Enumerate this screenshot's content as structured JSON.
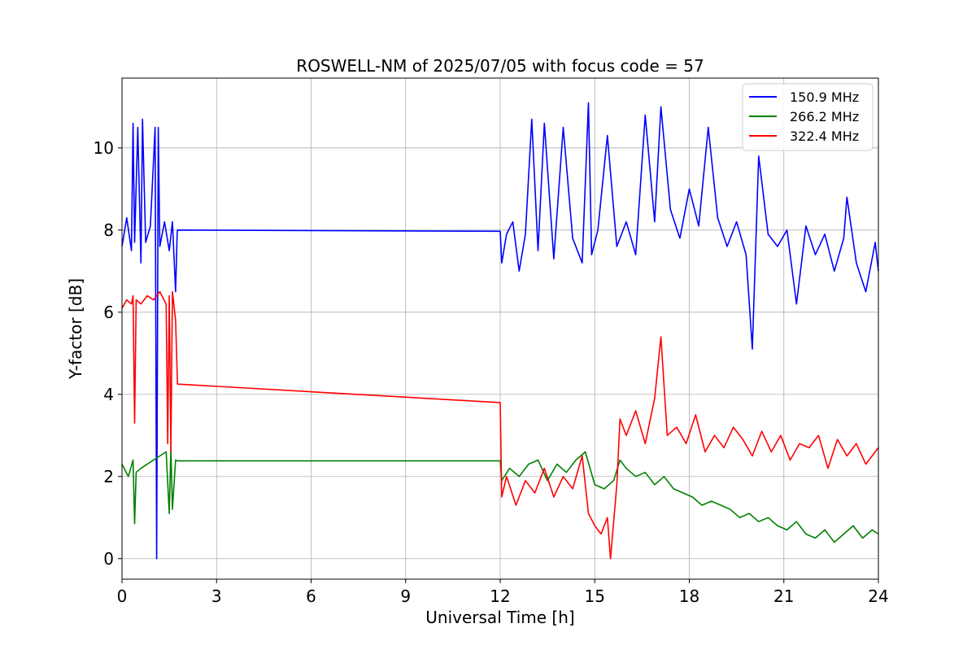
{
  "chart_data": {
    "type": "line",
    "title": "ROSWELL-NM of 2025/07/05 with focus code = 57",
    "xlabel": "Universal Time [h]",
    "ylabel": "Y-factor [dB]",
    "xlim": [
      0,
      24
    ],
    "ylim": [
      -0.5,
      11.7
    ],
    "xticks": [
      0,
      3,
      6,
      9,
      12,
      15,
      18,
      21,
      24
    ],
    "yticks": [
      0,
      2,
      4,
      6,
      8,
      10
    ],
    "grid": true,
    "legend_position": "top-right",
    "series": [
      {
        "name": "150.9 MHz",
        "color": "#0000ff",
        "x": [
          0,
          0.15,
          0.3,
          0.35,
          0.4,
          0.5,
          0.6,
          0.65,
          0.75,
          0.9,
          1.05,
          1.1,
          1.15,
          1.2,
          1.35,
          1.5,
          1.6,
          1.7,
          1.75,
          1.76,
          12.0,
          12.05,
          12.2,
          12.4,
          12.6,
          12.8,
          13.0,
          13.2,
          13.4,
          13.7,
          14.0,
          14.3,
          14.6,
          14.8,
          14.9,
          15.1,
          15.4,
          15.7,
          16.0,
          16.3,
          16.6,
          16.9,
          17.1,
          17.4,
          17.7,
          18.0,
          18.3,
          18.6,
          18.9,
          19.2,
          19.5,
          19.8,
          20.0,
          20.2,
          20.5,
          20.8,
          21.1,
          21.4,
          21.7,
          22.0,
          22.3,
          22.6,
          22.9,
          23.0,
          23.3,
          23.6,
          23.9,
          24.0
        ],
        "y": [
          7.6,
          8.3,
          7.5,
          10.6,
          7.7,
          10.5,
          7.2,
          10.7,
          7.7,
          8.1,
          10.5,
          0.0,
          10.5,
          7.6,
          8.2,
          7.5,
          8.2,
          6.5,
          7.9,
          8.0,
          7.97,
          7.2,
          7.9,
          8.2,
          7.0,
          7.9,
          10.7,
          7.5,
          10.6,
          7.3,
          10.5,
          7.8,
          7.2,
          11.1,
          7.4,
          8.0,
          10.3,
          7.6,
          8.2,
          7.4,
          10.8,
          8.2,
          11.0,
          8.5,
          7.8,
          9.0,
          8.1,
          10.5,
          8.3,
          7.6,
          8.2,
          7.4,
          5.1,
          9.8,
          7.9,
          7.6,
          8.0,
          6.2,
          8.1,
          7.4,
          7.9,
          7.0,
          7.8,
          8.8,
          7.2,
          6.5,
          7.7,
          7.0
        ]
      },
      {
        "name": "266.2 MHz",
        "color": "#008000",
        "x": [
          0,
          0.2,
          0.35,
          0.4,
          0.45,
          0.6,
          0.8,
          1.0,
          1.2,
          1.4,
          1.5,
          1.55,
          1.6,
          1.7,
          1.76,
          12.0,
          12.05,
          12.3,
          12.6,
          12.9,
          13.2,
          13.5,
          13.8,
          14.1,
          14.4,
          14.7,
          15.0,
          15.3,
          15.6,
          15.8,
          16.0,
          16.3,
          16.6,
          16.9,
          17.2,
          17.5,
          17.8,
          18.1,
          18.4,
          18.7,
          19.0,
          19.3,
          19.6,
          19.9,
          20.2,
          20.5,
          20.8,
          21.1,
          21.4,
          21.7,
          22.0,
          22.3,
          22.6,
          22.9,
          23.2,
          23.5,
          23.8,
          24.0
        ],
        "y": [
          2.3,
          2.0,
          2.4,
          0.85,
          2.1,
          2.2,
          2.3,
          2.4,
          2.5,
          2.6,
          1.1,
          2.7,
          1.2,
          2.4,
          2.38,
          2.38,
          1.9,
          2.2,
          2.0,
          2.3,
          2.4,
          1.9,
          2.3,
          2.1,
          2.4,
          2.6,
          1.8,
          1.7,
          1.9,
          2.4,
          2.2,
          2.0,
          2.1,
          1.8,
          2.0,
          1.7,
          1.6,
          1.5,
          1.3,
          1.4,
          1.3,
          1.2,
          1.0,
          1.1,
          0.9,
          1.0,
          0.8,
          0.7,
          0.9,
          0.6,
          0.5,
          0.7,
          0.4,
          0.6,
          0.8,
          0.5,
          0.7,
          0.6
        ]
      },
      {
        "name": "322.4 MHz",
        "color": "#ff0000",
        "x": [
          0,
          0.15,
          0.3,
          0.35,
          0.4,
          0.45,
          0.6,
          0.8,
          1.0,
          1.2,
          1.4,
          1.45,
          1.5,
          1.55,
          1.6,
          1.7,
          1.76,
          12.0,
          12.05,
          12.2,
          12.5,
          12.8,
          13.1,
          13.4,
          13.7,
          14.0,
          14.3,
          14.6,
          14.8,
          15.0,
          15.2,
          15.4,
          15.5,
          15.7,
          15.8,
          16.0,
          16.3,
          16.6,
          16.9,
          17.1,
          17.3,
          17.6,
          17.9,
          18.2,
          18.5,
          18.8,
          19.1,
          19.4,
          19.7,
          20.0,
          20.3,
          20.6,
          20.9,
          21.2,
          21.5,
          21.8,
          22.1,
          22.4,
          22.7,
          23.0,
          23.3,
          23.6,
          23.9,
          24.0
        ],
        "y": [
          6.1,
          6.3,
          6.2,
          6.4,
          3.3,
          6.3,
          6.2,
          6.4,
          6.3,
          6.5,
          6.2,
          2.8,
          6.4,
          2.6,
          6.5,
          5.8,
          4.25,
          3.8,
          1.5,
          2.0,
          1.3,
          1.9,
          1.6,
          2.2,
          1.5,
          2.0,
          1.7,
          2.5,
          1.1,
          0.8,
          0.6,
          1.0,
          0.0,
          1.8,
          3.4,
          3.0,
          3.6,
          2.8,
          3.9,
          5.4,
          3.0,
          3.2,
          2.8,
          3.5,
          2.6,
          3.0,
          2.7,
          3.2,
          2.9,
          2.5,
          3.1,
          2.6,
          3.0,
          2.4,
          2.8,
          2.7,
          3.0,
          2.2,
          2.9,
          2.5,
          2.8,
          2.3,
          2.6,
          2.7
        ]
      }
    ]
  }
}
